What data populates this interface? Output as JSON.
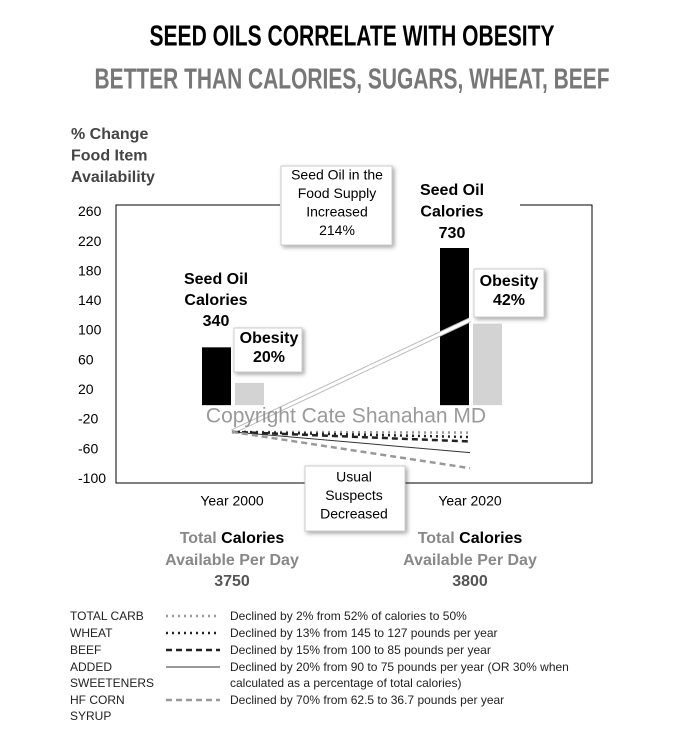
{
  "chart_data": {
    "type": "bar",
    "title": "SEED OILS CORRELATE WITH OBESITY",
    "subtitle": "BETTER THAN CALORIES, SUGARS, WHEAT, BEEF",
    "y_label": [
      "% Change",
      "Food Item",
      "Availability"
    ],
    "categories": [
      "Year 2000",
      "Year 2020"
    ],
    "ylim": [
      -105,
      270
    ],
    "yticks": [
      260,
      220,
      180,
      140,
      100,
      60,
      20,
      -20,
      -60,
      -100
    ],
    "series": [
      {
        "kind": "bar",
        "color": "#000000",
        "values": [
          78,
          212
        ]
      },
      {
        "kind": "bar",
        "color": "#d3d3d3",
        "values": [
          30,
          110
        ]
      },
      {
        "kind": "line",
        "color": "#ffffff",
        "style": "solid",
        "values": [
          -36,
          115
        ]
      },
      {
        "name": "TOTAL CARB",
        "kind": "line",
        "color": "#999999",
        "style": "dotted",
        "values": [
          -36,
          -37
        ],
        "description": "Declined by 2% from 52% of calories to 50%"
      },
      {
        "name": "WHEAT",
        "kind": "line",
        "color": "#222222",
        "style": "dotted",
        "values": [
          -36,
          -43
        ],
        "description": "Declined by 13% from 145 to 127 pounds per year"
      },
      {
        "name": "BEEF",
        "kind": "line",
        "color": "#222222",
        "style": "dashed",
        "values": [
          -36,
          -49
        ],
        "description": "Declined by 15% from 100 to 85 pounds per year"
      },
      {
        "name": "ADDED SWEETENERS",
        "kind": "line",
        "color": "#333333",
        "style": "solid",
        "values": [
          -36,
          -64
        ],
        "description": "Declined by 20% from 90 to 75 pounds per year (OR 30% when calculated as a percentage of total calories)"
      },
      {
        "name": "HF CORN SYRUP",
        "kind": "line",
        "color": "#999999",
        "style": "dashed",
        "values": [
          -36,
          -85
        ],
        "description": "Declined by 70% from 62.5 to 36.7 pounds per year"
      }
    ],
    "annotations": {
      "seed_oil_2000": [
        "Seed Oil",
        "Calories",
        "340"
      ],
      "obesity_2000": [
        "Obesity",
        "20%"
      ],
      "seed_oil_2020": [
        "Seed Oil",
        "Calories",
        "730"
      ],
      "obesity_2020": [
        "Obesity",
        "42%"
      ],
      "increase": [
        "Seed Oil in the",
        "Food Supply",
        "Increased",
        "214%"
      ],
      "decrease": [
        "Usual",
        "Suspects",
        "Decreased"
      ],
      "watermark": "Copyright Cate Shanahan MD"
    },
    "footer": [
      {
        "total": "Total",
        "calories": "Calories",
        "line2": "Available Per Day",
        "value": "3750"
      },
      {
        "total": "Total",
        "calories": "Calories",
        "line2": "Available Per Day",
        "value": "3800"
      }
    ]
  }
}
